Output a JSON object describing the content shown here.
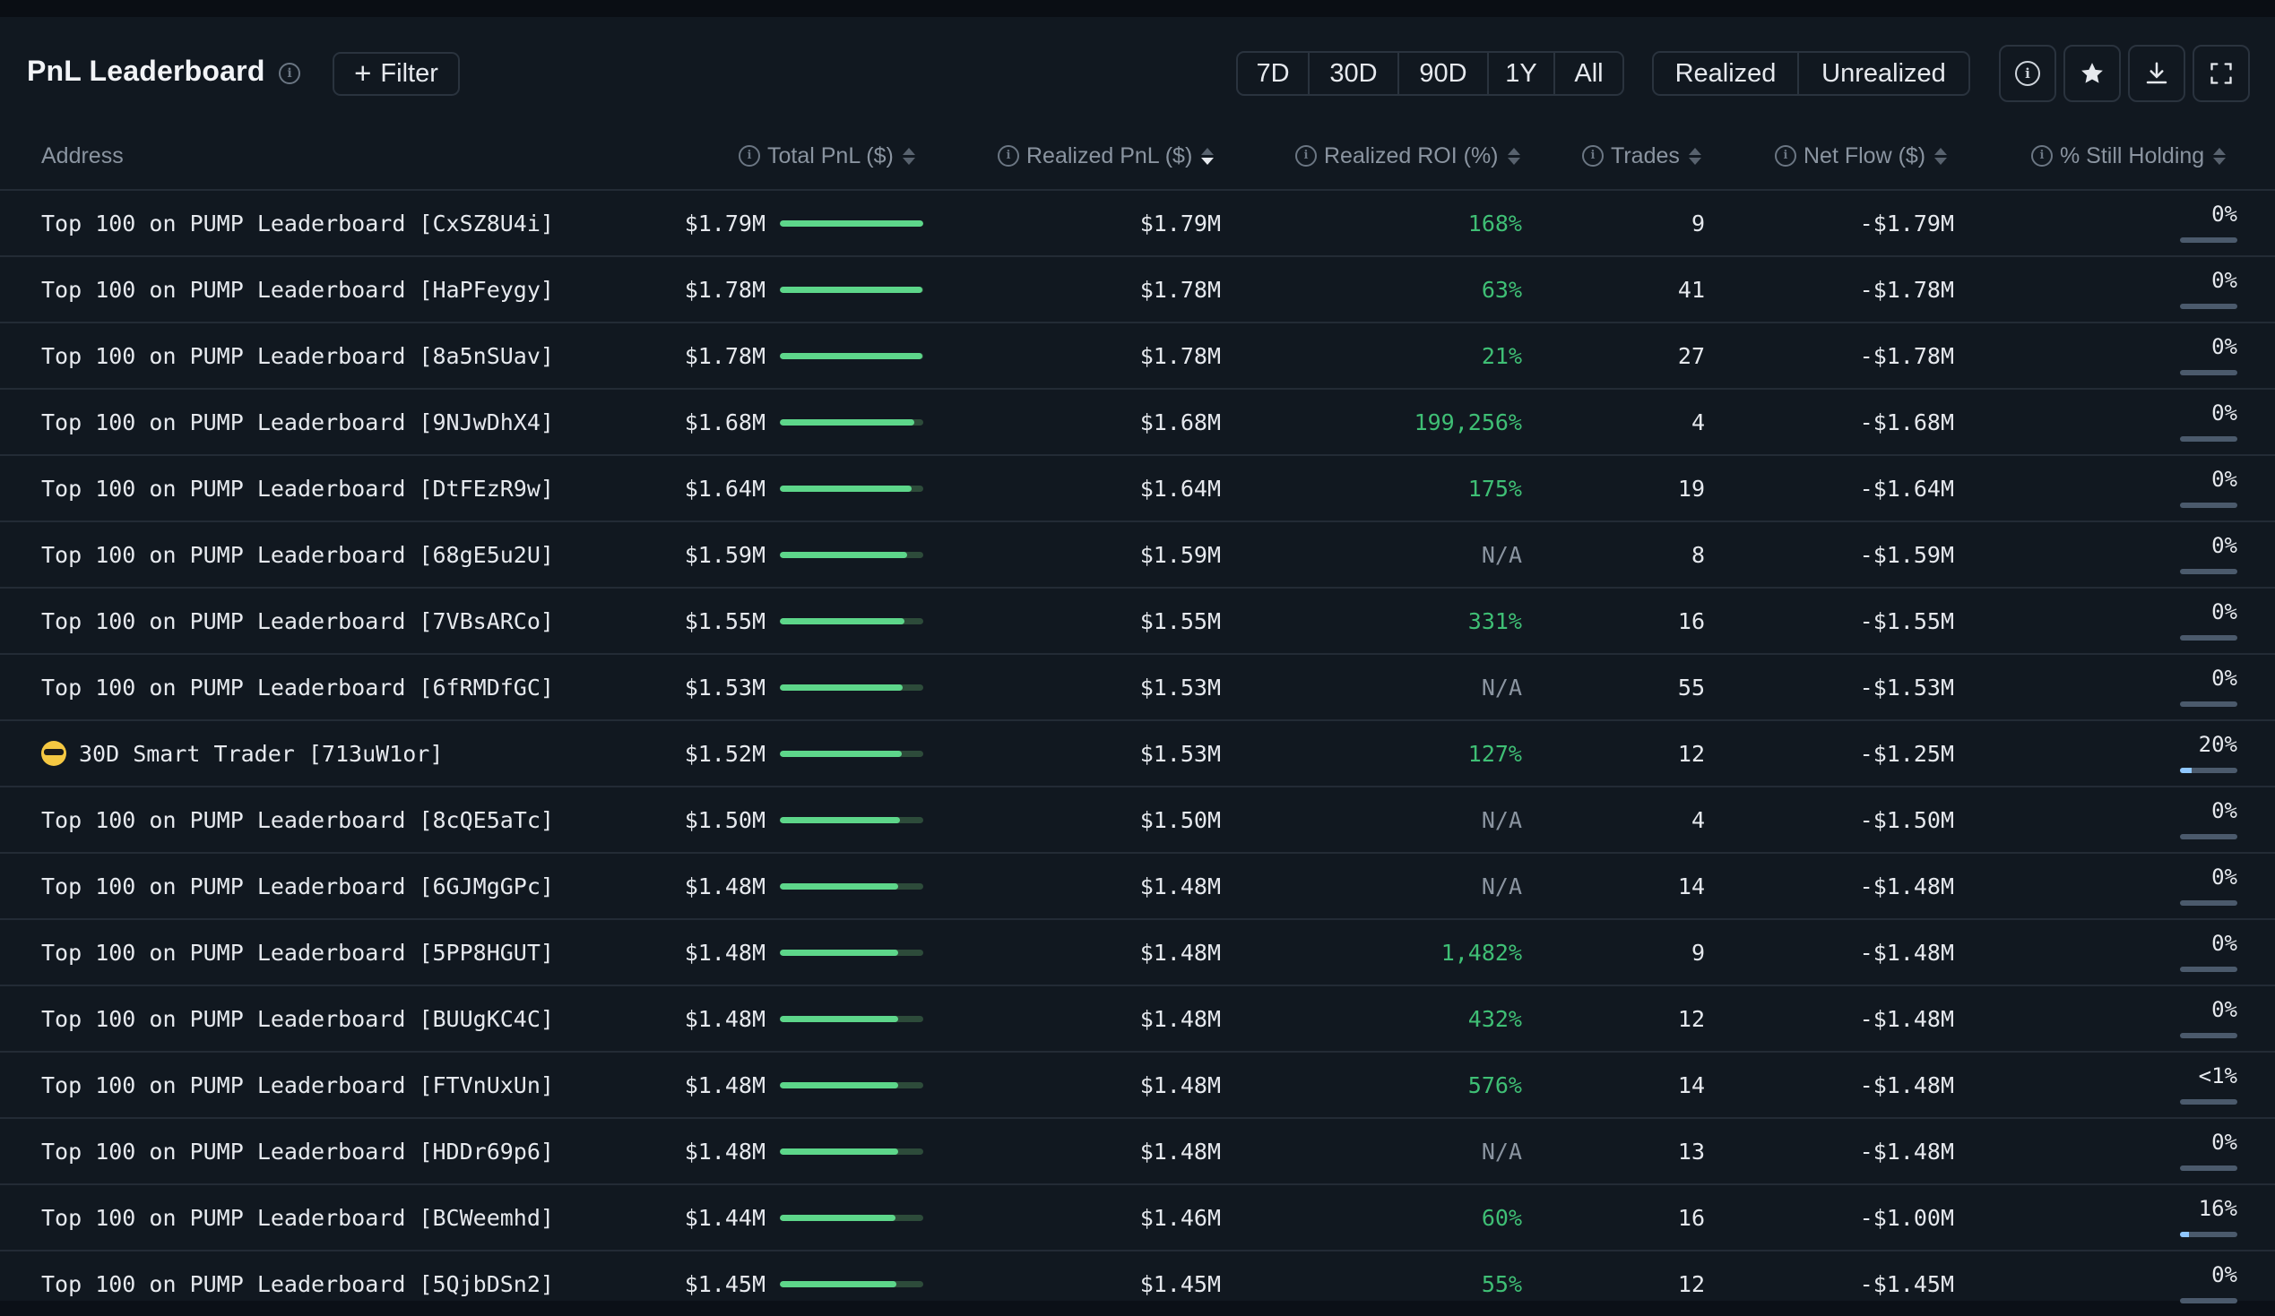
{
  "header": {
    "title": "PnL Leaderboard",
    "filter_label": "Filter",
    "periods": [
      {
        "label": "7D",
        "active": true
      },
      {
        "label": "30D",
        "active": false
      },
      {
        "label": "90D",
        "active": false
      },
      {
        "label": "1Y",
        "active": false
      },
      {
        "label": "All",
        "active": false
      }
    ],
    "modes": [
      {
        "label": "Realized",
        "active": true
      },
      {
        "label": "Unrealized",
        "active": false
      }
    ],
    "toolbar_icons": [
      "info-icon",
      "star-icon",
      "download-icon",
      "fullscreen-icon"
    ]
  },
  "columns": {
    "address": "Address",
    "total_pnl": "Total PnL ($)",
    "realized_pnl": "Realized PnL ($)",
    "realized_roi": "Realized ROI (%)",
    "trades": "Trades",
    "net_flow": "Net Flow ($)",
    "still_holding": "% Still Holding"
  },
  "sorted_column": "realized_pnl",
  "colors": {
    "accent": "#36c079",
    "positive": "#3fbf75",
    "bar_fill": "#5dd68a",
    "background": "#111820"
  },
  "rows": [
    {
      "address": "Top 100 on PUMP Leaderboard [CxSZ8U4i]",
      "total": "$1.79M",
      "total_bar": 1.0,
      "realized": "$1.79M",
      "roi": "168%",
      "roi_type": "pos",
      "trades": "9",
      "flow": "-$1.79M",
      "hold": "0%",
      "hold_frac": 0
    },
    {
      "address": "Top 100 on PUMP Leaderboard [HaPFeygy]",
      "total": "$1.78M",
      "total_bar": 0.994,
      "realized": "$1.78M",
      "roi": "63%",
      "roi_type": "pos",
      "trades": "41",
      "flow": "-$1.78M",
      "hold": "0%",
      "hold_frac": 0
    },
    {
      "address": "Top 100 on PUMP Leaderboard [8a5nSUav]",
      "total": "$1.78M",
      "total_bar": 0.994,
      "realized": "$1.78M",
      "roi": "21%",
      "roi_type": "pos",
      "trades": "27",
      "flow": "-$1.78M",
      "hold": "0%",
      "hold_frac": 0
    },
    {
      "address": "Top 100 on PUMP Leaderboard [9NJwDhX4]",
      "total": "$1.68M",
      "total_bar": 0.939,
      "realized": "$1.68M",
      "roi": "199,256%",
      "roi_type": "pos",
      "trades": "4",
      "flow": "-$1.68M",
      "hold": "0%",
      "hold_frac": 0
    },
    {
      "address": "Top 100 on PUMP Leaderboard [DtFEzR9w]",
      "total": "$1.64M",
      "total_bar": 0.916,
      "realized": "$1.64M",
      "roi": "175%",
      "roi_type": "pos",
      "trades": "19",
      "flow": "-$1.64M",
      "hold": "0%",
      "hold_frac": 0
    },
    {
      "address": "Top 100 on PUMP Leaderboard [68gE5u2U]",
      "total": "$1.59M",
      "total_bar": 0.888,
      "realized": "$1.59M",
      "roi": "N/A",
      "roi_type": "na",
      "trades": "8",
      "flow": "-$1.59M",
      "hold": "0%",
      "hold_frac": 0
    },
    {
      "address": "Top 100 on PUMP Leaderboard [7VBsARCo]",
      "total": "$1.55M",
      "total_bar": 0.866,
      "realized": "$1.55M",
      "roi": "331%",
      "roi_type": "pos",
      "trades": "16",
      "flow": "-$1.55M",
      "hold": "0%",
      "hold_frac": 0
    },
    {
      "address": "Top 100 on PUMP Leaderboard [6fRMDfGC]",
      "total": "$1.53M",
      "total_bar": 0.855,
      "realized": "$1.53M",
      "roi": "N/A",
      "roi_type": "na",
      "trades": "55",
      "flow": "-$1.53M",
      "hold": "0%",
      "hold_frac": 0
    },
    {
      "address": "30D Smart Trader [713uW1or]",
      "emoji": true,
      "total": "$1.52M",
      "total_bar": 0.849,
      "realized": "$1.53M",
      "roi": "127%",
      "roi_type": "pos",
      "trades": "12",
      "flow": "-$1.25M",
      "hold": "20%",
      "hold_frac": 0.2
    },
    {
      "address": "Top 100 on PUMP Leaderboard [8cQE5aTc]",
      "total": "$1.50M",
      "total_bar": 0.838,
      "realized": "$1.50M",
      "roi": "N/A",
      "roi_type": "na",
      "trades": "4",
      "flow": "-$1.50M",
      "hold": "0%",
      "hold_frac": 0
    },
    {
      "address": "Top 100 on PUMP Leaderboard [6GJMgGPc]",
      "total": "$1.48M",
      "total_bar": 0.827,
      "realized": "$1.48M",
      "roi": "N/A",
      "roi_type": "na",
      "trades": "14",
      "flow": "-$1.48M",
      "hold": "0%",
      "hold_frac": 0
    },
    {
      "address": "Top 100 on PUMP Leaderboard [5PP8HGUT]",
      "total": "$1.48M",
      "total_bar": 0.827,
      "realized": "$1.48M",
      "roi": "1,482%",
      "roi_type": "pos",
      "trades": "9",
      "flow": "-$1.48M",
      "hold": "0%",
      "hold_frac": 0
    },
    {
      "address": "Top 100 on PUMP Leaderboard [BUUgKC4C]",
      "total": "$1.48M",
      "total_bar": 0.827,
      "realized": "$1.48M",
      "roi": "432%",
      "roi_type": "pos",
      "trades": "12",
      "flow": "-$1.48M",
      "hold": "0%",
      "hold_frac": 0
    },
    {
      "address": "Top 100 on PUMP Leaderboard [FTVnUxUn]",
      "total": "$1.48M",
      "total_bar": 0.827,
      "realized": "$1.48M",
      "roi": "576%",
      "roi_type": "pos",
      "trades": "14",
      "flow": "-$1.48M",
      "hold": "<1%",
      "hold_frac": 0
    },
    {
      "address": "Top 100 on PUMP Leaderboard [HDDr69p6]",
      "total": "$1.48M",
      "total_bar": 0.827,
      "realized": "$1.48M",
      "roi": "N/A",
      "roi_type": "na",
      "trades": "13",
      "flow": "-$1.48M",
      "hold": "0%",
      "hold_frac": 0
    },
    {
      "address": "Top 100 on PUMP Leaderboard [BCWeemhd]",
      "total": "$1.44M",
      "total_bar": 0.805,
      "realized": "$1.46M",
      "roi": "60%",
      "roi_type": "pos",
      "trades": "16",
      "flow": "-$1.00M",
      "hold": "16%",
      "hold_frac": 0.16
    },
    {
      "address": "Top 100 on PUMP Leaderboard [5QjbDSn2]",
      "total": "$1.45M",
      "total_bar": 0.81,
      "realized": "$1.45M",
      "roi": "55%",
      "roi_type": "pos",
      "trades": "12",
      "flow": "-$1.45M",
      "hold": "0%",
      "hold_frac": 0
    }
  ]
}
